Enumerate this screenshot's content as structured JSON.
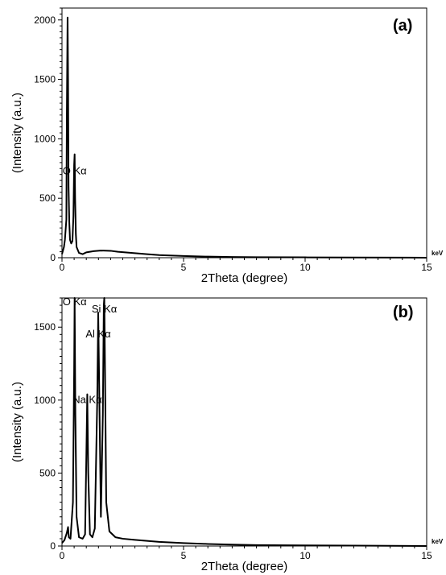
{
  "chart_data": [
    {
      "type": "line",
      "panel": "(a)",
      "xlabel": "2Theta (degree)",
      "ylabel": "(Intensity (a.u.)",
      "x_unit": "keV",
      "xlim": [
        0,
        15
      ],
      "ylim": [
        0,
        2100
      ],
      "x_ticks": [
        0,
        5,
        10,
        15
      ],
      "y_ticks": [
        0,
        500,
        1000,
        1500,
        2000
      ],
      "grid": false,
      "legend": "none",
      "peak_labels": [
        {
          "text": "O Kα",
          "x": 0.52,
          "y": 700
        }
      ],
      "series": [
        {
          "x": [
            0.0,
            0.08,
            0.12,
            0.18,
            0.2,
            0.23,
            0.25,
            0.27,
            0.3,
            0.33,
            0.38,
            0.43,
            0.47,
            0.5,
            0.52,
            0.54,
            0.57,
            0.6,
            0.7,
            0.85,
            1.0,
            1.3,
            1.6,
            2.0,
            2.3,
            2.6,
            3.0,
            3.5,
            4.0,
            5.0,
            6.0,
            7.0,
            8.0,
            10.0,
            12.0,
            15.0
          ],
          "y": [
            30,
            90,
            150,
            320,
            1200,
            2020,
            1500,
            600,
            300,
            150,
            120,
            140,
            350,
            780,
            870,
            500,
            200,
            90,
            40,
            30,
            45,
            55,
            60,
            58,
            50,
            45,
            38,
            30,
            22,
            14,
            9,
            6,
            4,
            3,
            2,
            0
          ]
        }
      ]
    },
    {
      "type": "line",
      "panel": "(b)",
      "xlabel": "2Theta (degree)",
      "ylabel": "(Intensity (a.u.)",
      "x_unit": "keV",
      "xlim": [
        0,
        15
      ],
      "ylim": [
        0,
        1700
      ],
      "x_ticks": [
        0,
        5,
        10,
        15
      ],
      "y_ticks": [
        0,
        500,
        1000,
        1500
      ],
      "grid": false,
      "legend": "none",
      "peak_labels": [
        {
          "text": "O Kα",
          "x": 0.52,
          "y": 1650
        },
        {
          "text": "Si Kα",
          "x": 1.74,
          "y": 1600
        },
        {
          "text": "Al Kα",
          "x": 1.49,
          "y": 1430
        },
        {
          "text": "Na Kα",
          "x": 1.04,
          "y": 980
        }
      ],
      "series": [
        {
          "x": [
            0.0,
            0.1,
            0.2,
            0.25,
            0.28,
            0.35,
            0.45,
            0.5,
            0.52,
            0.55,
            0.6,
            0.7,
            0.85,
            0.95,
            1.0,
            1.04,
            1.08,
            1.15,
            1.25,
            1.35,
            1.45,
            1.49,
            1.53,
            1.6,
            1.68,
            1.72,
            1.74,
            1.77,
            1.82,
            1.95,
            2.2,
            2.5,
            3.0,
            3.5,
            4.0,
            5.0,
            6.0,
            7.0,
            8.0,
            10.0,
            12.0,
            15.0
          ],
          "y": [
            20,
            40,
            90,
            130,
            60,
            50,
            300,
            1200,
            1700,
            900,
            200,
            60,
            50,
            80,
            600,
            1040,
            500,
            80,
            60,
            120,
            1000,
            1600,
            1100,
            200,
            900,
            1650,
            1700,
            1200,
            300,
            100,
            60,
            50,
            42,
            35,
            28,
            20,
            14,
            10,
            6,
            4,
            3,
            0
          ]
        }
      ]
    }
  ],
  "figure": {
    "panel_a_label": "(a)",
    "panel_b_label": "(b)",
    "unit_label": "keV"
  }
}
